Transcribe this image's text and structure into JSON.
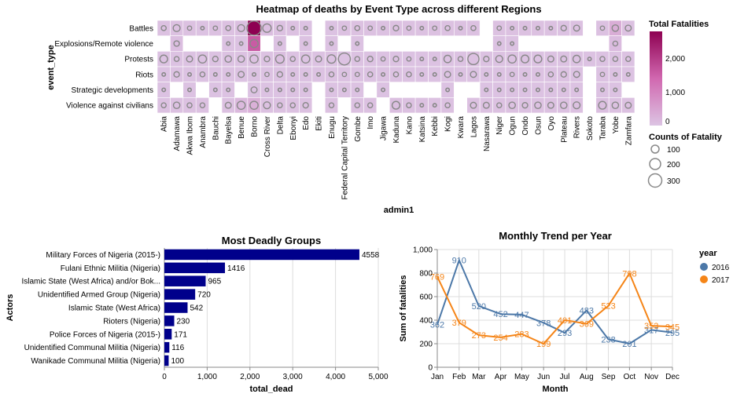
{
  "chart_data": [
    {
      "type": "heatmap",
      "title": "Heatmap of deaths by Event Type across different Regions",
      "xlabel": "admin1",
      "ylabel": "event_type",
      "x_categories": [
        "Abia",
        "Adamawa",
        "Akwa Ibom",
        "Anambra",
        "Bauchi",
        "Bayelsa",
        "Benue",
        "Borno",
        "Cross River",
        "Delta",
        "Ebonyi",
        "Edo",
        "Ekiti",
        "Enugu",
        "Federal Capital Territory",
        "Gombe",
        "Imo",
        "Jigawa",
        "Kaduna",
        "Kano",
        "Katsina",
        "Kebbi",
        "Kogi",
        "Kwara",
        "Lagos",
        "Nasarawa",
        "Niger",
        "Ogun",
        "Ondo",
        "Osun",
        "Oyo",
        "Plateau",
        "Rivers",
        "Sokoto",
        "Taraba",
        "Yobe",
        "Zamfara"
      ],
      "y_categories": [
        "Battles",
        "Explosions/Remote violence",
        "Protests",
        "Riots",
        "Strategic developments",
        "Violence against civilians"
      ],
      "color_legend": {
        "title": "Total Fatalities",
        "ticks": [
          "2,000",
          "1,000",
          "0"
        ],
        "max": 2700,
        "color_low": "#dcc4e3",
        "color_high": "#8e0152"
      },
      "size_legend": {
        "title": "Counts of Fatality",
        "values": [
          100,
          200,
          300
        ]
      },
      "fatalities": [
        [
          40,
          40,
          40,
          30,
          40,
          40,
          60,
          2700,
          80,
          40,
          40,
          30,
          0,
          30,
          40,
          40,
          40,
          40,
          40,
          40,
          40,
          40,
          40,
          40,
          40,
          0,
          40,
          40,
          40,
          40,
          40,
          30,
          40,
          0,
          40,
          300,
          40
        ],
        [
          0,
          80,
          0,
          0,
          0,
          30,
          30,
          1400,
          0,
          30,
          0,
          30,
          0,
          30,
          0,
          30,
          0,
          0,
          0,
          0,
          0,
          0,
          0,
          0,
          0,
          0,
          30,
          30,
          0,
          0,
          0,
          0,
          0,
          0,
          0,
          100,
          0
        ],
        [
          30,
          30,
          30,
          30,
          30,
          30,
          30,
          40,
          30,
          60,
          30,
          30,
          30,
          30,
          30,
          30,
          30,
          30,
          30,
          30,
          30,
          30,
          30,
          30,
          40,
          30,
          30,
          30,
          30,
          30,
          30,
          30,
          30,
          30,
          30,
          30,
          30
        ],
        [
          30,
          30,
          30,
          30,
          30,
          30,
          30,
          30,
          30,
          30,
          30,
          30,
          30,
          30,
          30,
          30,
          30,
          30,
          30,
          30,
          30,
          30,
          30,
          30,
          30,
          30,
          30,
          30,
          30,
          30,
          30,
          30,
          30,
          0,
          30,
          30,
          30
        ],
        [
          30,
          0,
          30,
          0,
          30,
          30,
          0,
          30,
          30,
          30,
          30,
          30,
          0,
          30,
          30,
          30,
          0,
          30,
          0,
          0,
          0,
          0,
          30,
          0,
          0,
          30,
          30,
          30,
          30,
          30,
          30,
          30,
          30,
          0,
          30,
          30,
          0
        ],
        [
          40,
          40,
          40,
          40,
          0,
          40,
          150,
          260,
          40,
          40,
          40,
          40,
          0,
          40,
          0,
          40,
          40,
          0,
          60,
          40,
          40,
          40,
          40,
          0,
          40,
          40,
          40,
          40,
          40,
          40,
          40,
          40,
          40,
          0,
          60,
          40,
          40
        ]
      ],
      "counts": [
        [
          40,
          80,
          30,
          20,
          30,
          40,
          80,
          340,
          120,
          50,
          20,
          20,
          0,
          20,
          30,
          40,
          30,
          20,
          50,
          30,
          20,
          30,
          40,
          20,
          40,
          0,
          30,
          20,
          20,
          20,
          20,
          50,
          60,
          0,
          30,
          70,
          60
        ],
        [
          0,
          50,
          0,
          0,
          0,
          20,
          20,
          110,
          0,
          20,
          0,
          20,
          0,
          20,
          0,
          20,
          0,
          0,
          0,
          0,
          0,
          0,
          0,
          0,
          0,
          0,
          20,
          20,
          0,
          0,
          0,
          0,
          0,
          0,
          0,
          40,
          0
        ],
        [
          100,
          40,
          60,
          110,
          50,
          70,
          70,
          110,
          50,
          120,
          40,
          110,
          60,
          120,
          240,
          40,
          50,
          30,
          50,
          30,
          20,
          20,
          90,
          40,
          210,
          50,
          80,
          110,
          100,
          100,
          60,
          60,
          90,
          20,
          40,
          40,
          40
        ],
        [
          20,
          50,
          20,
          40,
          20,
          20,
          60,
          20,
          30,
          50,
          20,
          20,
          20,
          40,
          30,
          30,
          40,
          20,
          40,
          40,
          20,
          20,
          60,
          20,
          60,
          20,
          20,
          30,
          20,
          20,
          40,
          50,
          60,
          0,
          30,
          20,
          20
        ],
        [
          20,
          0,
          20,
          0,
          20,
          20,
          0,
          60,
          20,
          20,
          20,
          20,
          0,
          20,
          20,
          20,
          0,
          20,
          0,
          0,
          0,
          0,
          20,
          0,
          0,
          20,
          20,
          20,
          20,
          20,
          20,
          20,
          20,
          0,
          20,
          20,
          0
        ],
        [
          40,
          70,
          40,
          40,
          0,
          60,
          110,
          110,
          80,
          40,
          40,
          50,
          0,
          40,
          0,
          40,
          40,
          0,
          100,
          40,
          20,
          20,
          40,
          0,
          60,
          60,
          40,
          70,
          50,
          70,
          60,
          70,
          80,
          0,
          100,
          70,
          60
        ]
      ]
    },
    {
      "type": "bar",
      "title": "Most Deadly Groups",
      "xlabel": "total_dead",
      "ylabel": "Actors",
      "categories": [
        "Military Forces of Nigeria (2015-)",
        "Fulani Ethnic Militia (Nigeria)",
        "Islamic State (West Africa) and/or Bok...",
        "Unidentified Armed Group (Nigeria)",
        "Islamic State (West Africa)",
        "Rioters (Nigeria)",
        "Police Forces of Nigeria (2015-)",
        "Unidentified Communal Militia (Nigeria)",
        "Wanikade Communal Militia (Nigeria)"
      ],
      "values": [
        4558,
        1416,
        965,
        720,
        542,
        230,
        171,
        116,
        100
      ],
      "value_labels": [
        "4558",
        "1416",
        "965",
        "720",
        "542",
        "230",
        "171",
        "116",
        "100"
      ],
      "xlim": [
        0,
        5000
      ],
      "xticks": [
        0,
        1000,
        2000,
        3000,
        4000,
        5000
      ],
      "xtick_labels": [
        "0",
        "1,000",
        "2,000",
        "3,000",
        "4,000",
        "5,000"
      ],
      "color": "#00008b"
    },
    {
      "type": "line",
      "title": "Monthly Trend per Year",
      "xlabel": "Month",
      "ylabel": "Sum of fatalities",
      "categories": [
        "Jan",
        "Feb",
        "Mar",
        "Apr",
        "May",
        "Jun",
        "Jul",
        "Aug",
        "Sep",
        "Oct",
        "Nov",
        "Dec"
      ],
      "x_positions_day_of_year": [
        1,
        32,
        60,
        91,
        121,
        152,
        182,
        213,
        244,
        274,
        305,
        335
      ],
      "ylim": [
        0,
        1000
      ],
      "yticks": [
        0,
        200,
        400,
        600,
        800,
        1000
      ],
      "ytick_labels": [
        "0",
        "200",
        "400",
        "600",
        "800",
        "1,000"
      ],
      "legend_title": "year",
      "series": [
        {
          "name": "2016",
          "color": "#4c78a8",
          "values": [
            362,
            910,
            520,
            452,
            447,
            378,
            293,
            483,
            238,
            201,
            317,
            295
          ]
        },
        {
          "name": "2017",
          "color": "#f58518",
          "values": [
            769,
            379,
            273,
            254,
            283,
            199,
            401,
            369,
            523,
            798,
            353,
            345
          ]
        }
      ]
    }
  ]
}
